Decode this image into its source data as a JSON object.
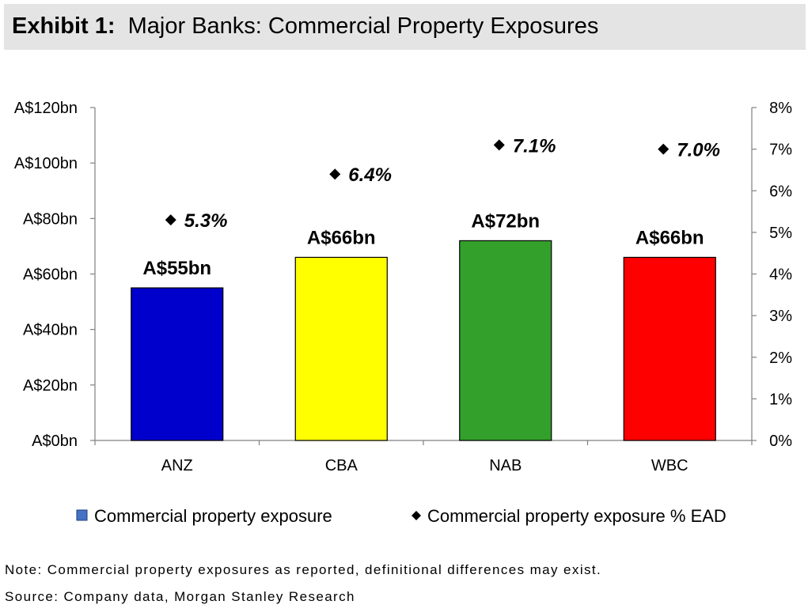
{
  "header": {
    "exhibit_label": "Exhibit 1:",
    "title": "Major Banks: Commercial Property Exposures"
  },
  "chart_data": {
    "type": "bar",
    "title": "Major Banks: Commercial Property Exposures",
    "categories": [
      "ANZ",
      "CBA",
      "NAB",
      "WBC"
    ],
    "series": [
      {
        "name": "Commercial property exposure",
        "kind": "bar",
        "axis": "left",
        "values": [
          55,
          66,
          72,
          66
        ],
        "labels": [
          "A$55bn",
          "A$66bn",
          "A$72bn",
          "A$66bn"
        ],
        "colors": [
          "#0000cc",
          "#ffff00",
          "#33a02c",
          "#ff0000"
        ]
      },
      {
        "name": "Commercial property exposure % EAD",
        "kind": "scatter",
        "marker": "diamond",
        "axis": "right",
        "values": [
          5.3,
          6.4,
          7.1,
          7.0
        ],
        "labels": [
          "5.3%",
          "6.4%",
          "7.1%",
          "7.0%"
        ],
        "color": "#000000"
      }
    ],
    "y_left": {
      "min": 0,
      "max": 120,
      "step": 20,
      "tick_labels": [
        "A$0bn",
        "A$20bn",
        "A$40bn",
        "A$60bn",
        "A$80bn",
        "A$100bn",
        "A$120bn"
      ]
    },
    "y_right": {
      "min": 0,
      "max": 8,
      "step": 1,
      "tick_labels": [
        "0%",
        "1%",
        "2%",
        "3%",
        "4%",
        "5%",
        "6%",
        "7%",
        "8%"
      ]
    },
    "legend": {
      "position": "bottom",
      "entries": [
        "Commercial property exposure",
        "Commercial property exposure % EAD"
      ],
      "bar_swatch_color": "#4472c4"
    },
    "grid": false
  },
  "footer": {
    "note": "Note: Commercial property exposures as reported, definitional differences may exist.",
    "source": "Source: Company data, Morgan Stanley Research"
  }
}
